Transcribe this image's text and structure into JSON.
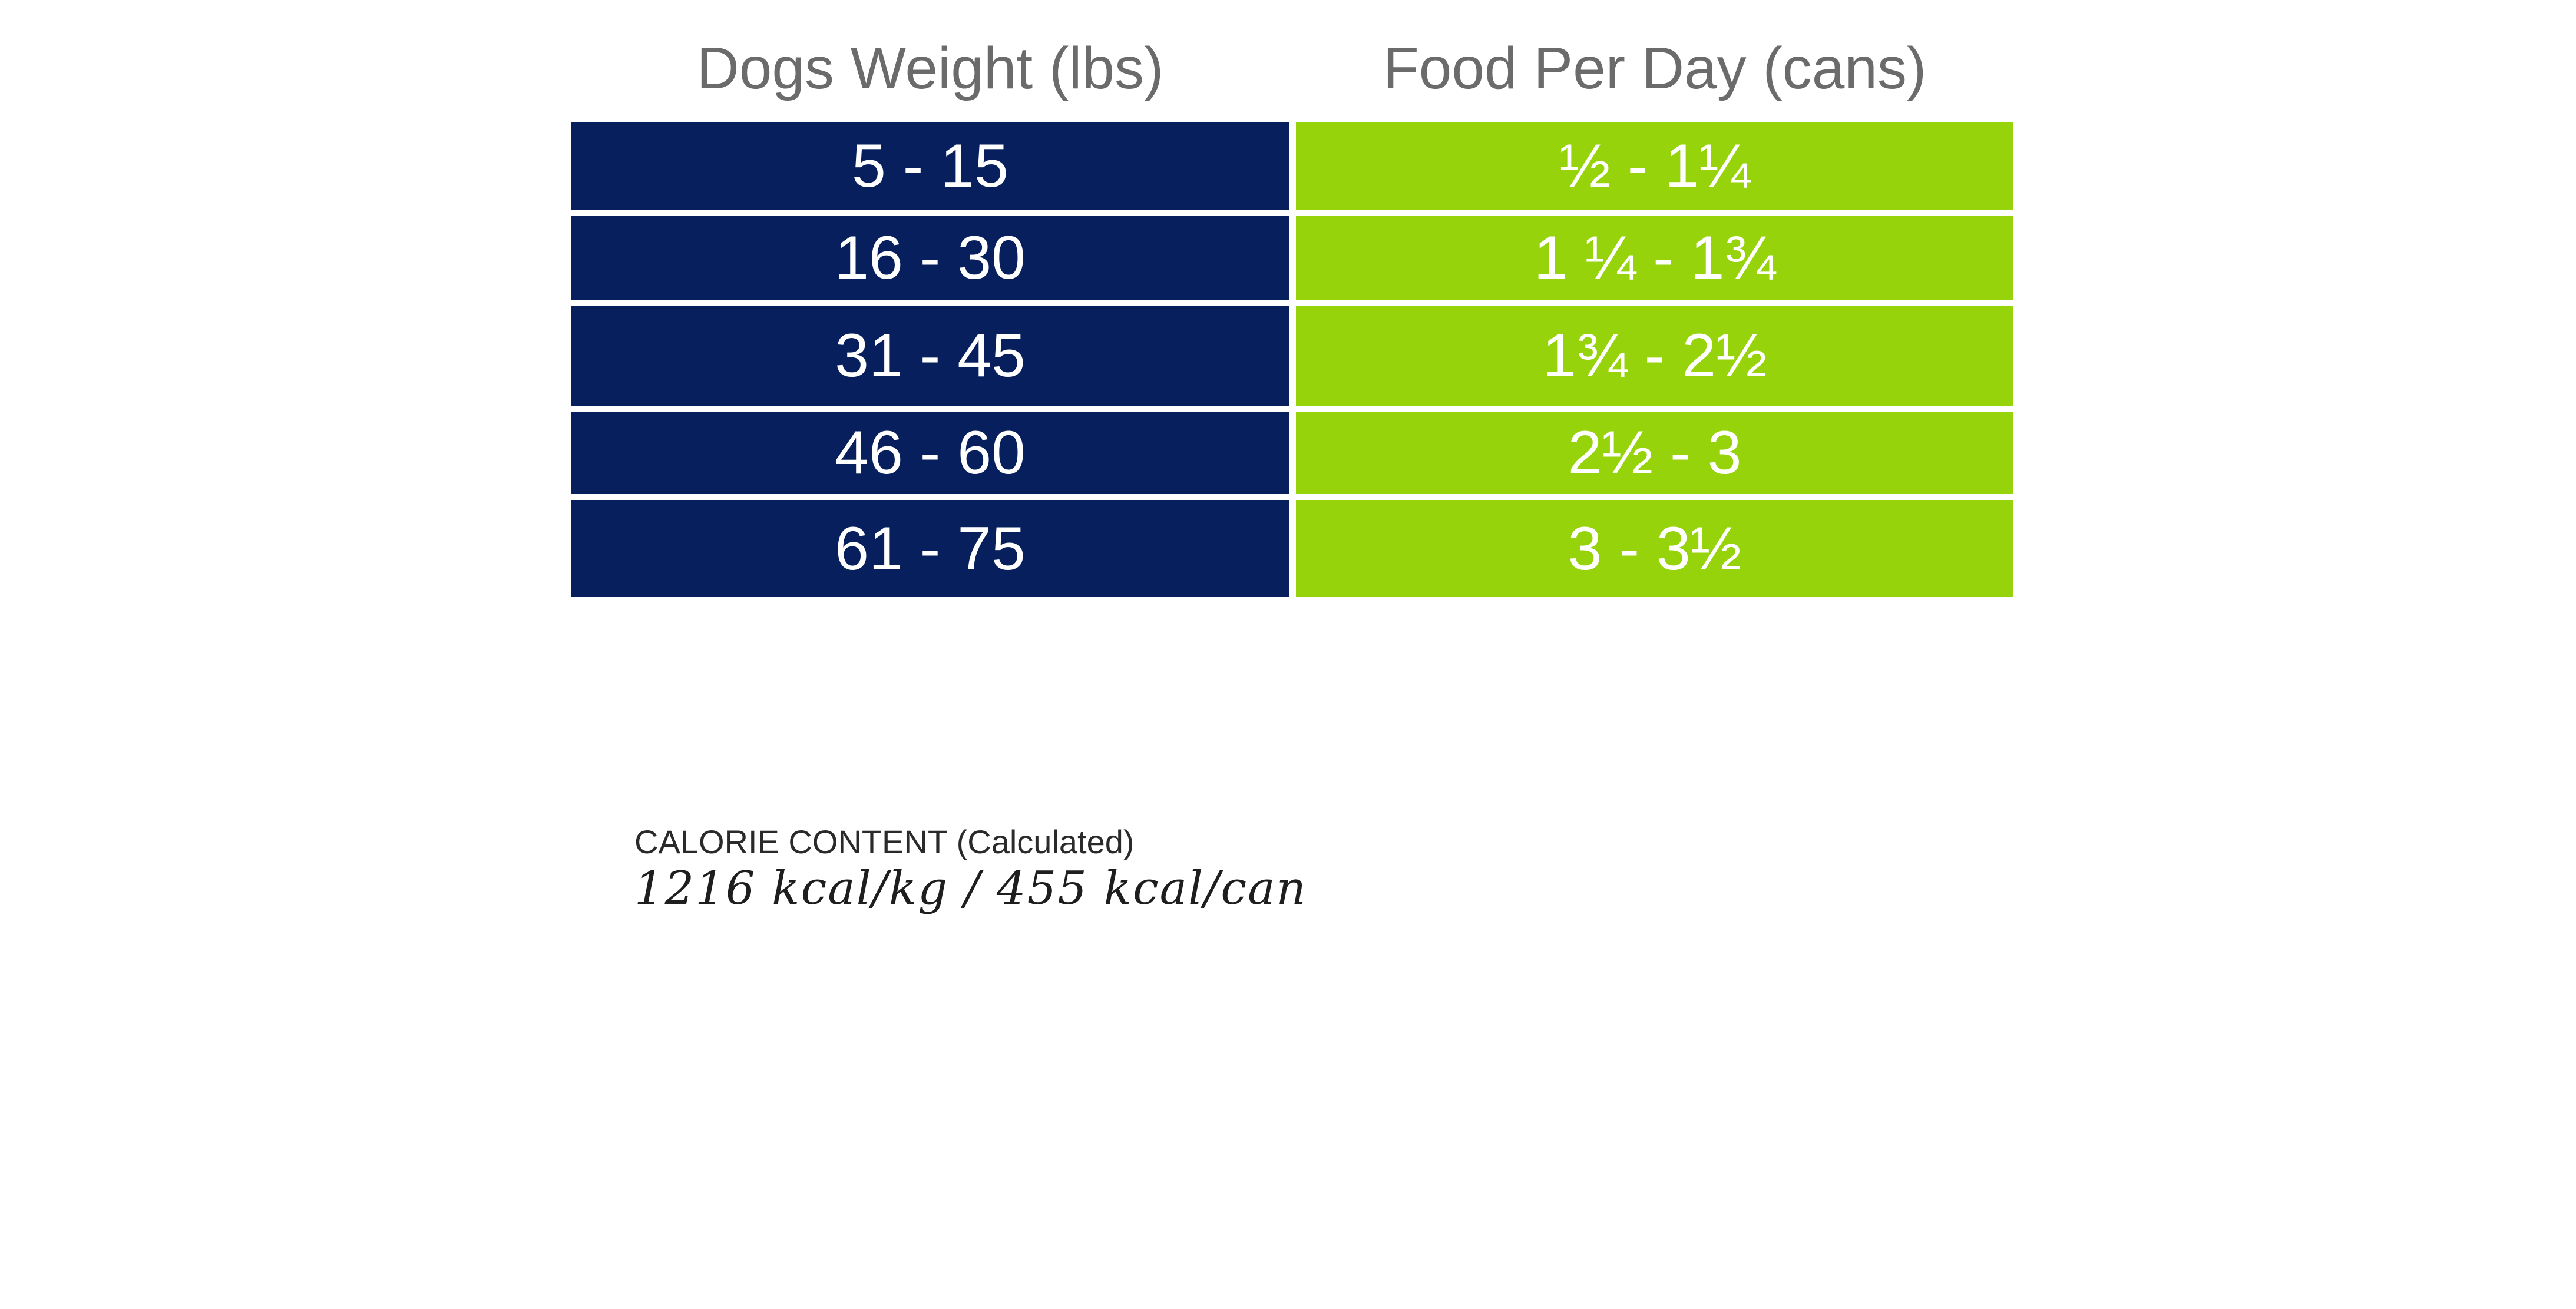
{
  "table": {
    "headers": {
      "weight": "Dogs Weight (lbs)",
      "food": "Food Per Day (cans)"
    },
    "rows": [
      {
        "weight": "5 - 15",
        "food": "½ - 1¼"
      },
      {
        "weight": "16 - 30",
        "food": "1 ¼ - 1¾"
      },
      {
        "weight": "31 - 45",
        "food": "1¾ - 2½"
      },
      {
        "weight": "46 - 60",
        "food": "2½ - 3"
      },
      {
        "weight": "61 - 75",
        "food": "3 - 3½"
      }
    ]
  },
  "calorie": {
    "label": "CALORIE CONTENT (Calculated)",
    "value": "1216 kcal/kg / 455 kcal/can"
  },
  "colors": {
    "weight_column": "#071f5c",
    "food_column": "#96d30a",
    "header_text": "#6b6b6b"
  }
}
